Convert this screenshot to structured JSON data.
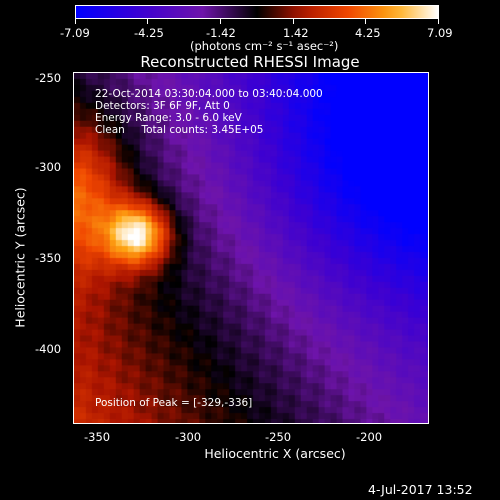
{
  "colorbar": {
    "ticks": [
      "-7.09",
      "-4.25",
      "-1.42",
      "1.42",
      "4.25",
      "7.09"
    ],
    "unit": "(photons cm⁻² s⁻¹ asec⁻²)"
  },
  "chart_data": {
    "type": "heatmap",
    "title": "Reconstructed RHESSI Image",
    "xlabel": "Heliocentric X (arcsec)",
    "ylabel": "Heliocentric Y (arcsec)",
    "xlim": [
      -364,
      -172
    ],
    "ylim": [
      -440,
      -247
    ],
    "x_ticks": [
      "-350",
      "-300",
      "-250",
      "-200"
    ],
    "y_ticks": [
      "-250",
      "-300",
      "-350",
      "-400"
    ],
    "clim": [
      -7.09,
      7.09
    ],
    "colormap": "rhessi-fire-purple",
    "peak": [
      -329,
      -336
    ],
    "annotations": [
      "22-Oct-2014 03:30:04.000 to 03:40:04.000",
      "Detectors: 3F 6F 9F, Att 0",
      "Energy Range: 3.0 - 6.0 keV",
      "Clean     Total counts: 3.45E+05"
    ],
    "peak_label": "Position of Peak = [-329,-336]"
  },
  "footer": {
    "timestamp": "4-Jul-2017 13:52"
  }
}
